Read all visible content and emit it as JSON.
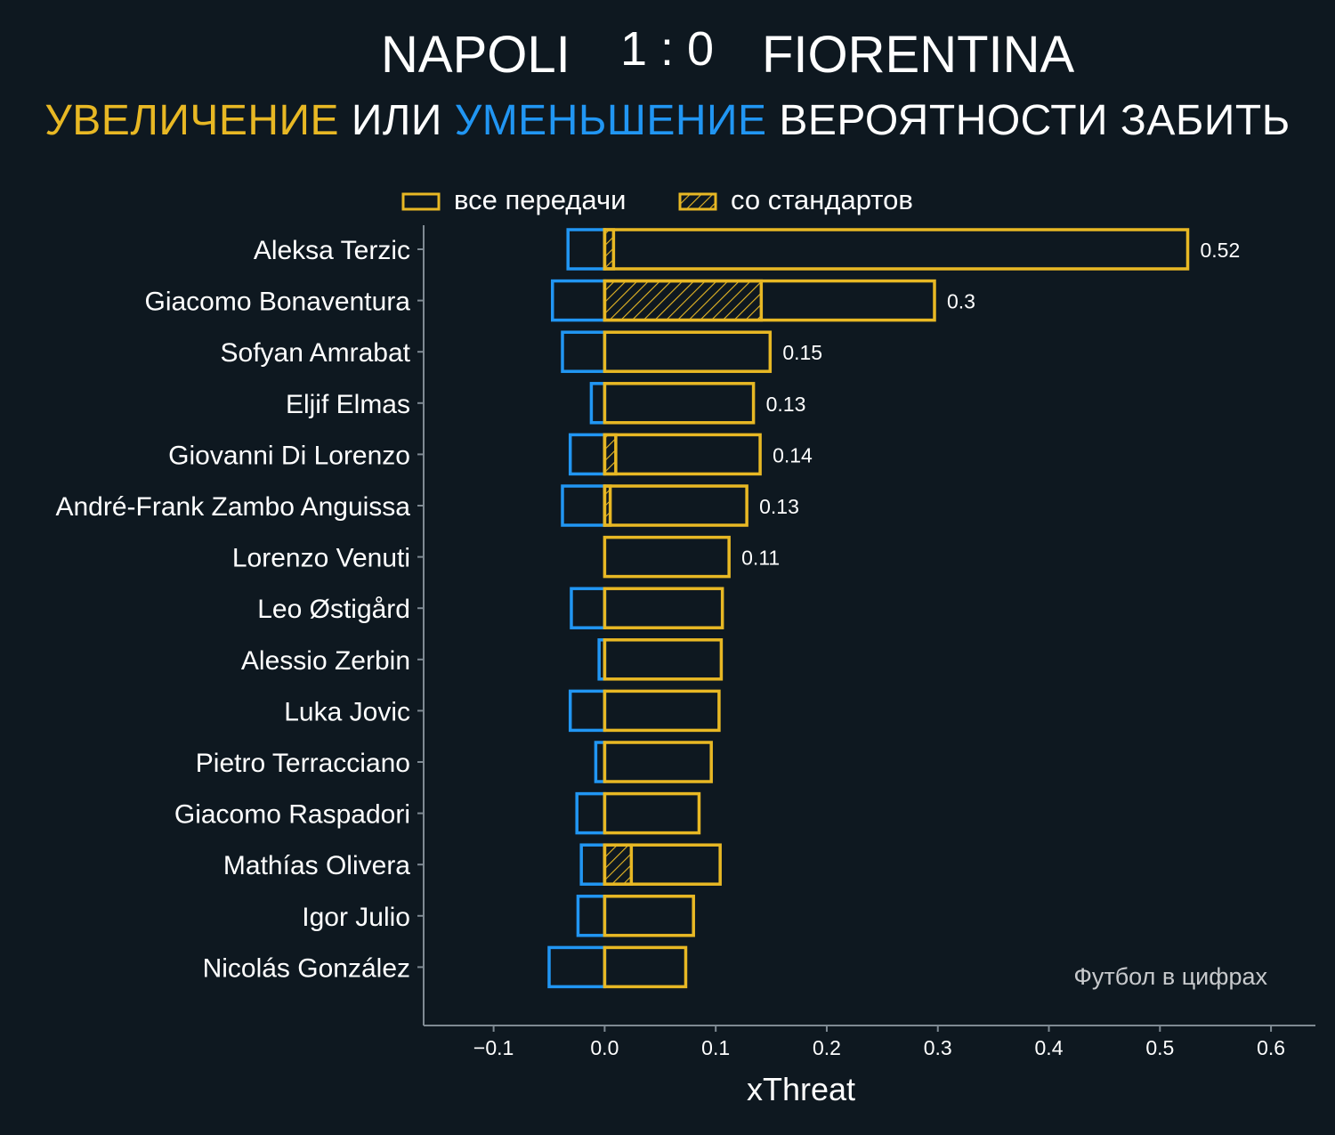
{
  "header": {
    "home_team": "NAPOLI",
    "score": "1 : 0",
    "away_team": "FIORENTINA",
    "subtitle_increase": "УВЕЛИЧЕНИЕ",
    "subtitle_or": "ИЛИ",
    "subtitle_decrease": "УМЕНЬШЕНИЕ",
    "subtitle_rest": "ВЕРОЯТНОСТИ ЗАБИТЬ"
  },
  "legend": {
    "all_passes": "все передачи",
    "set_pieces": "со стандартов"
  },
  "credit": "Футбол в цифрах",
  "colors": {
    "background": "#0e1820",
    "increase": "#e8b824",
    "decrease": "#2196f3",
    "axis": "#7f8a93"
  },
  "chart_data": {
    "type": "bar",
    "orientation": "horizontal",
    "xlabel": "xThreat",
    "xlim": [
      -0.163,
      0.64
    ],
    "xticks": [
      -0.1,
      0.0,
      0.1,
      0.2,
      0.3,
      0.4,
      0.5,
      0.6
    ],
    "xtick_labels": [
      "−0.1",
      "0.0",
      "0.1",
      "0.2",
      "0.3",
      "0.4",
      "0.5",
      "0.6"
    ],
    "grid": false,
    "legend_position": "top-center",
    "categories": [
      "Aleksa Terzic",
      "Giacomo Bonaventura",
      "Sofyan Amrabat",
      "Eljif Elmas",
      "Giovanni Di Lorenzo",
      "André-Frank Zambo Anguissa",
      "Lorenzo Venuti",
      "Leo Østigård",
      "Alessio Zerbin",
      "Luka Jovic",
      "Pietro Terracciano",
      "Giacomo Raspadori",
      "Mathías Olivera",
      "Igor Julio",
      "Nicolás González"
    ],
    "series": [
      {
        "name": "все передачи",
        "role": "positive",
        "values": [
          0.525,
          0.297,
          0.149,
          0.134,
          0.14,
          0.128,
          0.112,
          0.106,
          0.105,
          0.103,
          0.096,
          0.085,
          0.104,
          0.08,
          0.073
        ]
      },
      {
        "name": "со стандартов",
        "role": "positive_set_pieces",
        "values": [
          0.008,
          0.141,
          0,
          0,
          0.01,
          0.005,
          0,
          0,
          0,
          0,
          0,
          0,
          0.024,
          0,
          0
        ]
      },
      {
        "role": "negative",
        "values": [
          -0.033,
          -0.047,
          -0.038,
          -0.012,
          -0.031,
          -0.038,
          0,
          -0.03,
          -0.005,
          -0.031,
          -0.008,
          -0.025,
          -0.021,
          -0.024,
          -0.05
        ]
      }
    ],
    "value_labels": [
      "0.52",
      "0.3",
      "0.15",
      "0.13",
      "0.14",
      "0.13",
      "0.11",
      "",
      "",
      "",
      "",
      "",
      "",
      "",
      ""
    ]
  }
}
